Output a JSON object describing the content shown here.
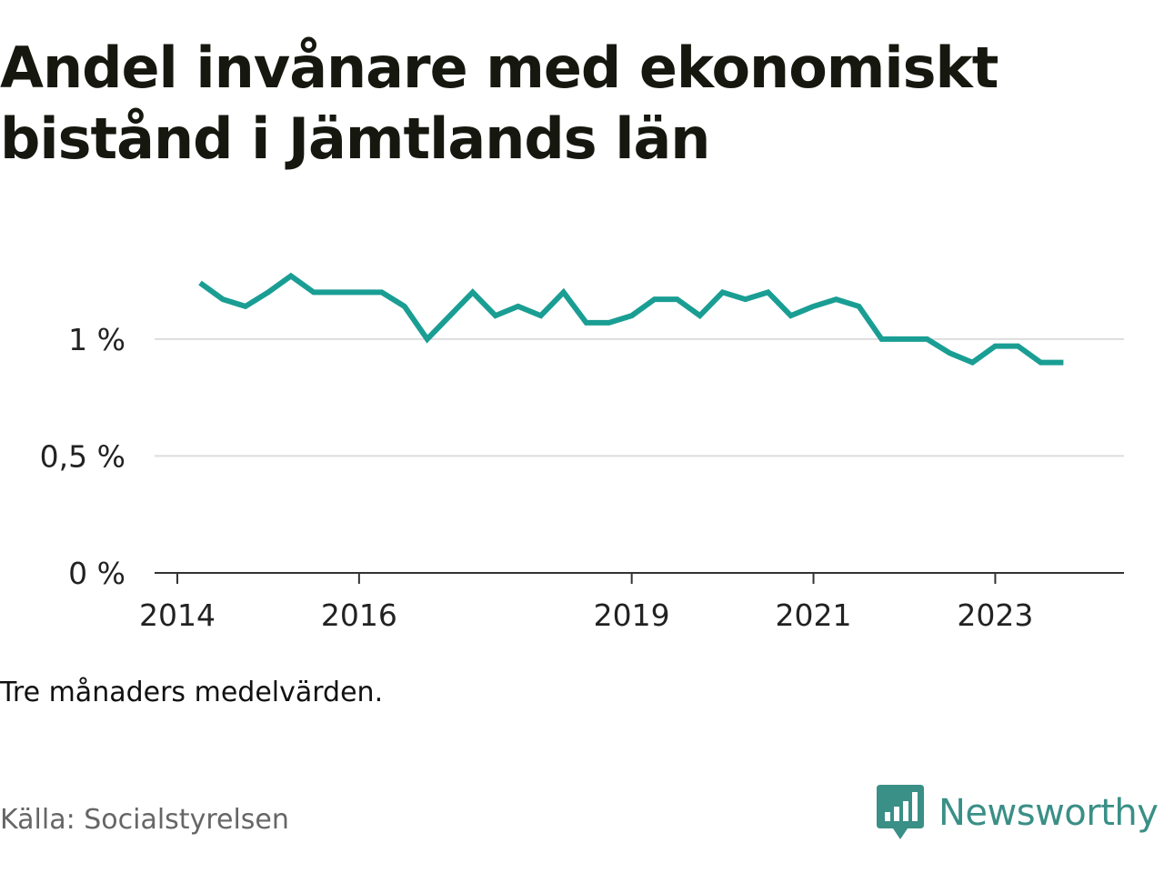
{
  "header": {
    "title": "Andel invånare med ekonomiskt bistånd i Jämtlands län"
  },
  "footer": {
    "note": "Tre månaders medelvärden.",
    "source": "Källa: Socialstyrelsen",
    "brand": "Newsworthy",
    "brand_icon": "bar-chart-speech-bubble-icon"
  },
  "colors": {
    "line": "#1a9e94",
    "grid": "#dddddd",
    "axis": "#333333",
    "brand": "#3a8f86"
  },
  "chart_data": {
    "type": "line",
    "title": "Andel invånare med ekonomiskt bistånd i Jämtlands län",
    "xlabel": "",
    "ylabel": "",
    "grid": true,
    "legend": "none",
    "ylim": [
      0,
      1.4
    ],
    "yticks": [
      {
        "value": 0,
        "label": "0 %"
      },
      {
        "value": 0.5,
        "label": "0,5 %"
      },
      {
        "value": 1,
        "label": "1 %"
      }
    ],
    "xticks": [
      {
        "value": "2014-01",
        "label": "2014"
      },
      {
        "value": "2016-01",
        "label": "2016"
      },
      {
        "value": "2019-01",
        "label": "2019"
      },
      {
        "value": "2021-01",
        "label": "2021"
      },
      {
        "value": "2023-01",
        "label": "2023"
      }
    ],
    "x_range": [
      "2013-10",
      "2024-06"
    ],
    "series": [
      {
        "values": [
          {
            "x": "2014-04",
            "y": 1.24
          },
          {
            "x": "2014-07",
            "y": 1.17
          },
          {
            "x": "2014-10",
            "y": 1.14
          },
          {
            "x": "2015-01",
            "y": 1.2
          },
          {
            "x": "2015-04",
            "y": 1.27
          },
          {
            "x": "2015-07",
            "y": 1.2
          },
          {
            "x": "2015-10",
            "y": 1.2
          },
          {
            "x": "2016-01",
            "y": 1.2
          },
          {
            "x": "2016-04",
            "y": 1.2
          },
          {
            "x": "2016-07",
            "y": 1.14
          },
          {
            "x": "2016-10",
            "y": 1.0
          },
          {
            "x": "2017-01",
            "y": 1.1
          },
          {
            "x": "2017-04",
            "y": 1.2
          },
          {
            "x": "2017-07",
            "y": 1.1
          },
          {
            "x": "2017-10",
            "y": 1.14
          },
          {
            "x": "2018-01",
            "y": 1.1
          },
          {
            "x": "2018-04",
            "y": 1.2
          },
          {
            "x": "2018-07",
            "y": 1.07
          },
          {
            "x": "2018-10",
            "y": 1.07
          },
          {
            "x": "2019-01",
            "y": 1.1
          },
          {
            "x": "2019-04",
            "y": 1.17
          },
          {
            "x": "2019-07",
            "y": 1.17
          },
          {
            "x": "2019-10",
            "y": 1.1
          },
          {
            "x": "2020-01",
            "y": 1.2
          },
          {
            "x": "2020-04",
            "y": 1.17
          },
          {
            "x": "2020-07",
            "y": 1.2
          },
          {
            "x": "2020-10",
            "y": 1.1
          },
          {
            "x": "2021-01",
            "y": 1.14
          },
          {
            "x": "2021-04",
            "y": 1.17
          },
          {
            "x": "2021-07",
            "y": 1.14
          },
          {
            "x": "2021-10",
            "y": 1.0
          },
          {
            "x": "2022-01",
            "y": 1.0
          },
          {
            "x": "2022-04",
            "y": 1.0
          },
          {
            "x": "2022-07",
            "y": 0.94
          },
          {
            "x": "2022-10",
            "y": 0.9
          },
          {
            "x": "2023-01",
            "y": 0.97
          },
          {
            "x": "2023-04",
            "y": 0.97
          },
          {
            "x": "2023-07",
            "y": 0.9
          },
          {
            "x": "2023-10",
            "y": 0.9
          }
        ]
      }
    ]
  }
}
